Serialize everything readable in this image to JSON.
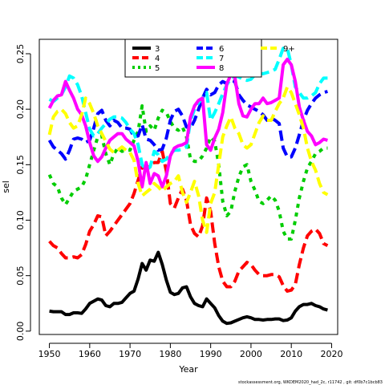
{
  "chart_data": {
    "type": "line",
    "xlabel": "Year",
    "ylabel": "sel",
    "xlim": [
      1947.5,
      2021.5
    ],
    "ylim": [
      -0.003,
      0.263
    ],
    "xticks": [
      1950,
      1960,
      1970,
      1980,
      1990,
      2000,
      2010,
      2020
    ],
    "yticks": [
      0.0,
      0.05,
      0.1,
      0.15,
      0.2,
      0.25
    ],
    "ytick_labels": [
      "0.00",
      "0.05",
      "0.10",
      "0.15",
      "0.20",
      "0.25"
    ],
    "grid": false,
    "legend_position": "top-center",
    "x": [
      1950,
      1951,
      1952,
      1953,
      1954,
      1955,
      1956,
      1957,
      1958,
      1959,
      1960,
      1961,
      1962,
      1963,
      1964,
      1965,
      1966,
      1967,
      1968,
      1969,
      1970,
      1971,
      1972,
      1973,
      1974,
      1975,
      1976,
      1977,
      1978,
      1979,
      1980,
      1981,
      1982,
      1983,
      1984,
      1985,
      1986,
      1987,
      1988,
      1989,
      1990,
      1991,
      1992,
      1993,
      1994,
      1995,
      1996,
      1997,
      1998,
      1999,
      2000,
      2001,
      2002,
      2003,
      2004,
      2005,
      2006,
      2007,
      2008,
      2009,
      2010,
      2011,
      2012,
      2013,
      2014,
      2015,
      2016,
      2017,
      2018,
      2019
    ],
    "series": [
      {
        "name": "3",
        "color": "#000000",
        "dash": "solid",
        "values": [
          0.018,
          0.0175,
          0.0175,
          0.0175,
          0.015,
          0.015,
          0.0165,
          0.0165,
          0.016,
          0.02,
          0.025,
          0.027,
          0.029,
          0.028,
          0.023,
          0.022,
          0.025,
          0.025,
          0.026,
          0.03,
          0.034,
          0.036,
          0.047,
          0.061,
          0.055,
          0.064,
          0.063,
          0.071,
          0.06,
          0.046,
          0.035,
          0.033,
          0.034,
          0.039,
          0.04,
          0.031,
          0.025,
          0.023,
          0.022,
          0.029,
          0.025,
          0.021,
          0.014,
          0.009,
          0.007,
          0.0075,
          0.009,
          0.0105,
          0.012,
          0.013,
          0.012,
          0.0105,
          0.0105,
          0.01,
          0.0105,
          0.0105,
          0.011,
          0.011,
          0.0095,
          0.01,
          0.012,
          0.018,
          0.022,
          0.024,
          0.024,
          0.025,
          0.023,
          0.022,
          0.02,
          0.019
        ]
      },
      {
        "name": "4",
        "color": "#ff0000",
        "dash": "long",
        "values": [
          0.081,
          0.077,
          0.075,
          0.07,
          0.066,
          0.066,
          0.067,
          0.066,
          0.069,
          0.078,
          0.09,
          0.096,
          0.104,
          0.103,
          0.086,
          0.09,
          0.095,
          0.1,
          0.105,
          0.11,
          0.115,
          0.124,
          0.136,
          0.148,
          0.147,
          0.15,
          0.152,
          0.152,
          0.162,
          0.144,
          0.115,
          0.111,
          0.12,
          0.128,
          0.118,
          0.096,
          0.088,
          0.085,
          0.095,
          0.12,
          0.108,
          0.079,
          0.058,
          0.045,
          0.04,
          0.04,
          0.045,
          0.054,
          0.058,
          0.062,
          0.06,
          0.055,
          0.051,
          0.05,
          0.05,
          0.051,
          0.051,
          0.049,
          0.041,
          0.036,
          0.037,
          0.042,
          0.06,
          0.075,
          0.086,
          0.09,
          0.092,
          0.088,
          0.079,
          0.077
        ]
      },
      {
        "name": "5",
        "color": "#00cd00",
        "dash": "dotted",
        "values": [
          0.141,
          0.133,
          0.13,
          0.12,
          0.114,
          0.12,
          0.126,
          0.128,
          0.13,
          0.137,
          0.15,
          0.163,
          0.175,
          0.176,
          0.16,
          0.15,
          0.16,
          0.165,
          0.162,
          0.163,
          0.163,
          0.172,
          0.18,
          0.203,
          0.18,
          0.185,
          0.181,
          0.192,
          0.199,
          0.197,
          0.189,
          0.183,
          0.181,
          0.184,
          0.175,
          0.155,
          0.153,
          0.153,
          0.158,
          0.165,
          0.175,
          0.171,
          0.15,
          0.117,
          0.104,
          0.108,
          0.126,
          0.139,
          0.148,
          0.15,
          0.135,
          0.127,
          0.117,
          0.115,
          0.118,
          0.122,
          0.118,
          0.108,
          0.09,
          0.083,
          0.083,
          0.1,
          0.12,
          0.135,
          0.147,
          0.153,
          0.16,
          0.162,
          0.165,
          0.165
        ]
      },
      {
        "name": "6",
        "color": "#0000ff",
        "dash": "long",
        "values": [
          0.172,
          0.166,
          0.163,
          0.16,
          0.155,
          0.163,
          0.173,
          0.174,
          0.173,
          0.17,
          0.172,
          0.183,
          0.196,
          0.199,
          0.19,
          0.185,
          0.19,
          0.188,
          0.183,
          0.183,
          0.182,
          0.175,
          0.176,
          0.186,
          0.173,
          0.172,
          0.168,
          0.163,
          0.164,
          0.174,
          0.19,
          0.198,
          0.2,
          0.194,
          0.184,
          0.183,
          0.19,
          0.2,
          0.21,
          0.218,
          0.213,
          0.215,
          0.222,
          0.225,
          0.223,
          0.226,
          0.225,
          0.213,
          0.208,
          0.204,
          0.202,
          0.2,
          0.198,
          0.195,
          0.19,
          0.192,
          0.19,
          0.187,
          0.165,
          0.157,
          0.157,
          0.165,
          0.177,
          0.19,
          0.199,
          0.205,
          0.21,
          0.213,
          0.215,
          0.216
        ]
      },
      {
        "name": "7",
        "color": "#00ffff",
        "dash": "long",
        "values": [
          0.209,
          0.207,
          0.21,
          0.213,
          0.22,
          0.23,
          0.228,
          0.222,
          0.212,
          0.197,
          0.182,
          0.176,
          0.178,
          0.183,
          0.187,
          0.191,
          0.193,
          0.193,
          0.192,
          0.188,
          0.182,
          0.178,
          0.168,
          0.15,
          0.145,
          0.148,
          0.162,
          0.159,
          0.153,
          0.155,
          0.16,
          0.163,
          0.163,
          0.164,
          0.166,
          0.19,
          0.2,
          0.206,
          0.21,
          0.215,
          0.19,
          0.197,
          0.205,
          0.214,
          0.222,
          0.228,
          0.23,
          0.229,
          0.227,
          0.226,
          0.227,
          0.231,
          0.232,
          0.232,
          0.233,
          0.234,
          0.236,
          0.245,
          0.255,
          0.255,
          0.24,
          0.22,
          0.215,
          0.21,
          0.21,
          0.212,
          0.215,
          0.223,
          0.228,
          0.228
        ]
      },
      {
        "name": "8",
        "color": "#ff00ff",
        "dash": "solid",
        "values": [
          0.201,
          0.208,
          0.212,
          0.213,
          0.225,
          0.217,
          0.21,
          0.2,
          0.195,
          0.185,
          0.17,
          0.158,
          0.153,
          0.157,
          0.165,
          0.172,
          0.175,
          0.178,
          0.178,
          0.173,
          0.17,
          0.167,
          0.153,
          0.13,
          0.152,
          0.133,
          0.142,
          0.14,
          0.13,
          0.14,
          0.158,
          0.165,
          0.167,
          0.168,
          0.17,
          0.193,
          0.203,
          0.208,
          0.21,
          0.168,
          0.163,
          0.174,
          0.182,
          0.197,
          0.223,
          0.231,
          0.229,
          0.205,
          0.194,
          0.193,
          0.2,
          0.205,
          0.205,
          0.21,
          0.205,
          0.206,
          0.208,
          0.21,
          0.24,
          0.245,
          0.24,
          0.225,
          0.202,
          0.19,
          0.18,
          0.176,
          0.168,
          0.17,
          0.173,
          0.172
        ]
      },
      {
        "name": "9+",
        "color": "#ffff00",
        "dash": "long",
        "values": [
          0.177,
          0.193,
          0.198,
          0.2,
          0.196,
          0.188,
          0.183,
          0.185,
          0.195,
          0.21,
          0.205,
          0.196,
          0.185,
          0.178,
          0.171,
          0.164,
          0.161,
          0.163,
          0.166,
          0.163,
          0.161,
          0.154,
          0.133,
          0.122,
          0.125,
          0.128,
          0.133,
          0.13,
          0.126,
          0.13,
          0.133,
          0.135,
          0.14,
          0.125,
          0.116,
          0.125,
          0.135,
          0.122,
          0.1,
          0.089,
          0.115,
          0.125,
          0.15,
          0.175,
          0.185,
          0.193,
          0.183,
          0.178,
          0.168,
          0.165,
          0.168,
          0.178,
          0.188,
          0.194,
          0.19,
          0.19,
          0.198,
          0.205,
          0.21,
          0.22,
          0.215,
          0.205,
          0.195,
          0.183,
          0.165,
          0.153,
          0.145,
          0.133,
          0.125,
          0.123
        ]
      }
    ],
    "legend_order": [
      "3",
      "4",
      "5",
      "6",
      "7",
      "8",
      "9+"
    ],
    "footer": "stockassessment.org, WKDEM2020_had_2c, r11742 , git: df0b7c1bcb83"
  }
}
